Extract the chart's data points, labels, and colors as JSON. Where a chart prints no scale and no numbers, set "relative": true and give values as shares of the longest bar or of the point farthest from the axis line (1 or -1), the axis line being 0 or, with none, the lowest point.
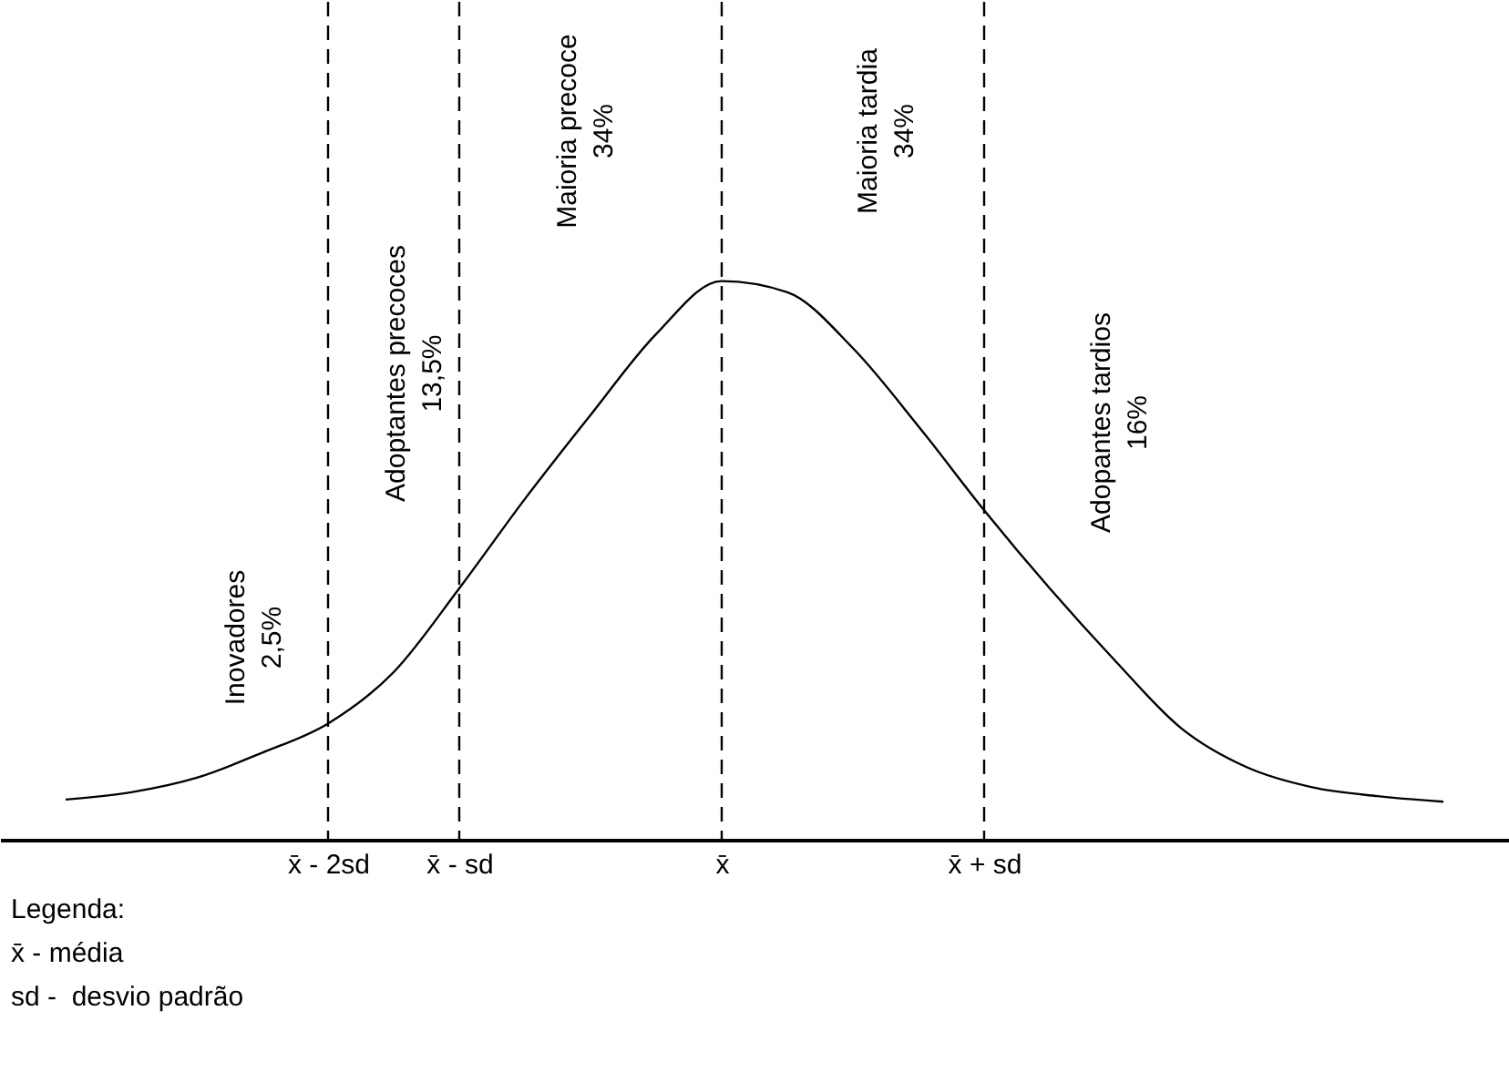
{
  "chart_data": {
    "type": "line",
    "relative": true,
    "categories": [
      null,
      null,
      null,
      null,
      "x̄ - 2sd",
      null,
      "x̄ - sd",
      null,
      null,
      null,
      "x̄",
      null,
      null,
      null,
      "x̄ + sd",
      null,
      null,
      null,
      null,
      null,
      null,
      null
    ],
    "series": [
      {
        "color": "#000000",
        "values": [
          0.072,
          0.085,
          0.111,
          0.156,
          0.208,
          0.3,
          0.45,
          0.61,
          0.76,
          0.905,
          1.0,
          0.98,
          0.88,
          0.74,
          0.59,
          0.45,
          0.32,
          0.2,
          0.13,
          0.094,
          0.078,
          0.068
        ]
      }
    ],
    "ref_lines": [
      {
        "axis": "x",
        "value": "x̄ - 2sd",
        "line_style": "dashed",
        "color": "#000000"
      },
      {
        "axis": "x",
        "value": "x̄ - sd",
        "line_style": "dashed",
        "color": "#000000"
      },
      {
        "axis": "x",
        "value": "x̄",
        "line_style": "dashed",
        "color": "#000000"
      },
      {
        "axis": "x",
        "value": "x̄ + sd",
        "line_style": "dashed",
        "color": "#000000"
      }
    ],
    "annotations": [
      "Inovadores\n2,5%",
      "Adoptantes precoces\n13,5%",
      "Maioria precoce\n34%",
      "Maioria tardia\n34%",
      "Adopantes tardios\n16%",
      "Legenda:",
      "x̄ - média",
      "sd -  desvio padrão"
    ]
  }
}
